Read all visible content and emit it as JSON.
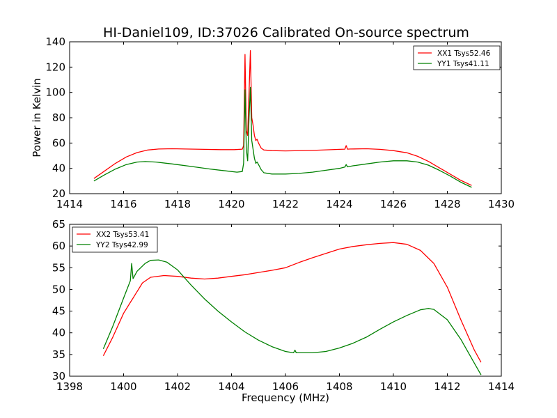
{
  "figure": {
    "title": "HI-Daniel109, ID:37026 Calibrated On-source spectrum"
  },
  "chart_data": [
    {
      "type": "line",
      "title": "HI-Daniel109, ID:37026 Calibrated On-source spectrum",
      "xlabel": "",
      "ylabel": "Power in Kelvin",
      "xlim": [
        1414,
        1430
      ],
      "ylim": [
        20,
        140
      ],
      "xticks": [
        "1414",
        "1416",
        "1418",
        "1420",
        "1422",
        "1424",
        "1426",
        "1428",
        "1430"
      ],
      "yticks": [
        "20",
        "40",
        "60",
        "80",
        "100",
        "120",
        "140"
      ],
      "grid": false,
      "legend_position": "top-right",
      "series": [
        {
          "name": "XX1 Tsys52.46",
          "color": "#ff0000",
          "x": [
            1414.9,
            1415.3,
            1415.7,
            1416.1,
            1416.5,
            1416.9,
            1417.3,
            1417.8,
            1418.3,
            1419.0,
            1419.6,
            1420.1,
            1420.4,
            1420.45,
            1420.5,
            1420.55,
            1420.6,
            1420.65,
            1420.7,
            1420.75,
            1420.8,
            1420.85,
            1420.9,
            1420.95,
            1421.0,
            1421.1,
            1421.2,
            1421.5,
            1422.0,
            1423.0,
            1424.0,
            1424.2,
            1424.25,
            1424.3,
            1424.4,
            1425.0,
            1425.5,
            1426.0,
            1426.5,
            1426.9,
            1427.3,
            1427.7,
            1428.1,
            1428.5,
            1428.9
          ],
          "values": [
            32,
            38,
            44,
            49,
            52.5,
            54.5,
            55.3,
            55.5,
            55.3,
            55.0,
            54.8,
            54.8,
            55.2,
            58,
            130,
            70,
            66,
            100,
            133,
            80,
            74,
            66,
            62,
            63,
            60,
            56,
            54.5,
            54.0,
            53.8,
            54.2,
            55.0,
            55.2,
            58,
            55.2,
            55.3,
            55.5,
            55.0,
            54.0,
            52.3,
            49.5,
            45.5,
            40.5,
            35.5,
            30.5,
            26.5
          ]
        },
        {
          "name": "YY1 Tsys41.11",
          "color": "#008000",
          "x": [
            1414.9,
            1415.3,
            1415.7,
            1416.1,
            1416.5,
            1416.8,
            1417.2,
            1417.8,
            1418.5,
            1419.2,
            1419.8,
            1420.2,
            1420.4,
            1420.45,
            1420.5,
            1420.55,
            1420.6,
            1420.65,
            1420.7,
            1420.75,
            1420.8,
            1420.85,
            1420.9,
            1420.95,
            1421.0,
            1421.1,
            1421.2,
            1421.5,
            1422.0,
            1422.5,
            1423.0,
            1423.5,
            1424.0,
            1424.2,
            1424.25,
            1424.3,
            1424.5,
            1425.0,
            1425.5,
            1426.0,
            1426.5,
            1426.9,
            1427.3,
            1427.7,
            1428.1,
            1428.5,
            1428.9
          ],
          "values": [
            30,
            35,
            39.5,
            43,
            45,
            45.4,
            45,
            43.5,
            41.5,
            39.5,
            38,
            37,
            37.5,
            44,
            102,
            55,
            46,
            80,
            104,
            62,
            55,
            48,
            44,
            45,
            43,
            39,
            36.5,
            35.5,
            35.5,
            36,
            37,
            38.5,
            40,
            41,
            43,
            41.2,
            42,
            43.5,
            45,
            46,
            46,
            45,
            42.5,
            38.5,
            34,
            29,
            25
          ]
        }
      ]
    },
    {
      "type": "line",
      "title": "",
      "xlabel": "Frequency (MHz)",
      "ylabel": "",
      "xlim": [
        1398,
        1414
      ],
      "ylim": [
        30,
        65
      ],
      "xticks": [
        "1398",
        "1400",
        "1402",
        "1404",
        "1406",
        "1408",
        "1410",
        "1412",
        "1414"
      ],
      "yticks": [
        "30",
        "35",
        "40",
        "45",
        "50",
        "55",
        "60",
        "65"
      ],
      "grid": false,
      "legend_position": "top-left",
      "series": [
        {
          "name": "XX2 Tsys53.41",
          "color": "#ff0000",
          "x": [
            1399.25,
            1399.6,
            1400.0,
            1400.3,
            1400.35,
            1400.4,
            1400.7,
            1401.0,
            1401.5,
            1402.0,
            1402.5,
            1403.0,
            1403.5,
            1404.0,
            1404.5,
            1405.0,
            1405.5,
            1406.0,
            1406.5,
            1407.0,
            1407.5,
            1408.0,
            1408.5,
            1409.0,
            1409.5,
            1410.0,
            1410.5,
            1411.0,
            1411.5,
            1412.0,
            1412.5,
            1413.0,
            1413.25
          ],
          "values": [
            34.7,
            39,
            44.5,
            47.5,
            48,
            48.5,
            51.5,
            52.8,
            53.2,
            53.0,
            52.6,
            52.4,
            52.6,
            53.0,
            53.4,
            53.9,
            54.4,
            55.0,
            56.2,
            57.3,
            58.3,
            59.3,
            59.9,
            60.3,
            60.6,
            60.8,
            60.4,
            59.0,
            56.0,
            50.5,
            43.0,
            36.0,
            33.2
          ]
        },
        {
          "name": "YY2 Tsys42.99",
          "color": "#008000",
          "x": [
            1399.25,
            1399.6,
            1400.0,
            1400.25,
            1400.3,
            1400.35,
            1400.5,
            1400.8,
            1401.0,
            1401.3,
            1401.6,
            1402.0,
            1402.5,
            1403.0,
            1403.5,
            1404.0,
            1404.5,
            1405.0,
            1405.5,
            1406.0,
            1406.3,
            1406.35,
            1406.4,
            1407.0,
            1407.5,
            1408.0,
            1408.5,
            1409.0,
            1409.5,
            1410.0,
            1410.5,
            1411.0,
            1411.3,
            1411.5,
            1412.0,
            1412.5,
            1413.0,
            1413.25
          ],
          "values": [
            36.3,
            41.5,
            48.0,
            52.0,
            56.0,
            52.5,
            54.2,
            56.0,
            56.7,
            56.8,
            56.3,
            54.5,
            51.0,
            47.8,
            45.0,
            42.5,
            40.2,
            38.3,
            36.8,
            35.7,
            35.4,
            36.0,
            35.4,
            35.4,
            35.7,
            36.5,
            37.6,
            39.0,
            40.8,
            42.5,
            44.0,
            45.3,
            45.6,
            45.4,
            43.0,
            38.5,
            33.0,
            30.3
          ]
        }
      ]
    }
  ]
}
